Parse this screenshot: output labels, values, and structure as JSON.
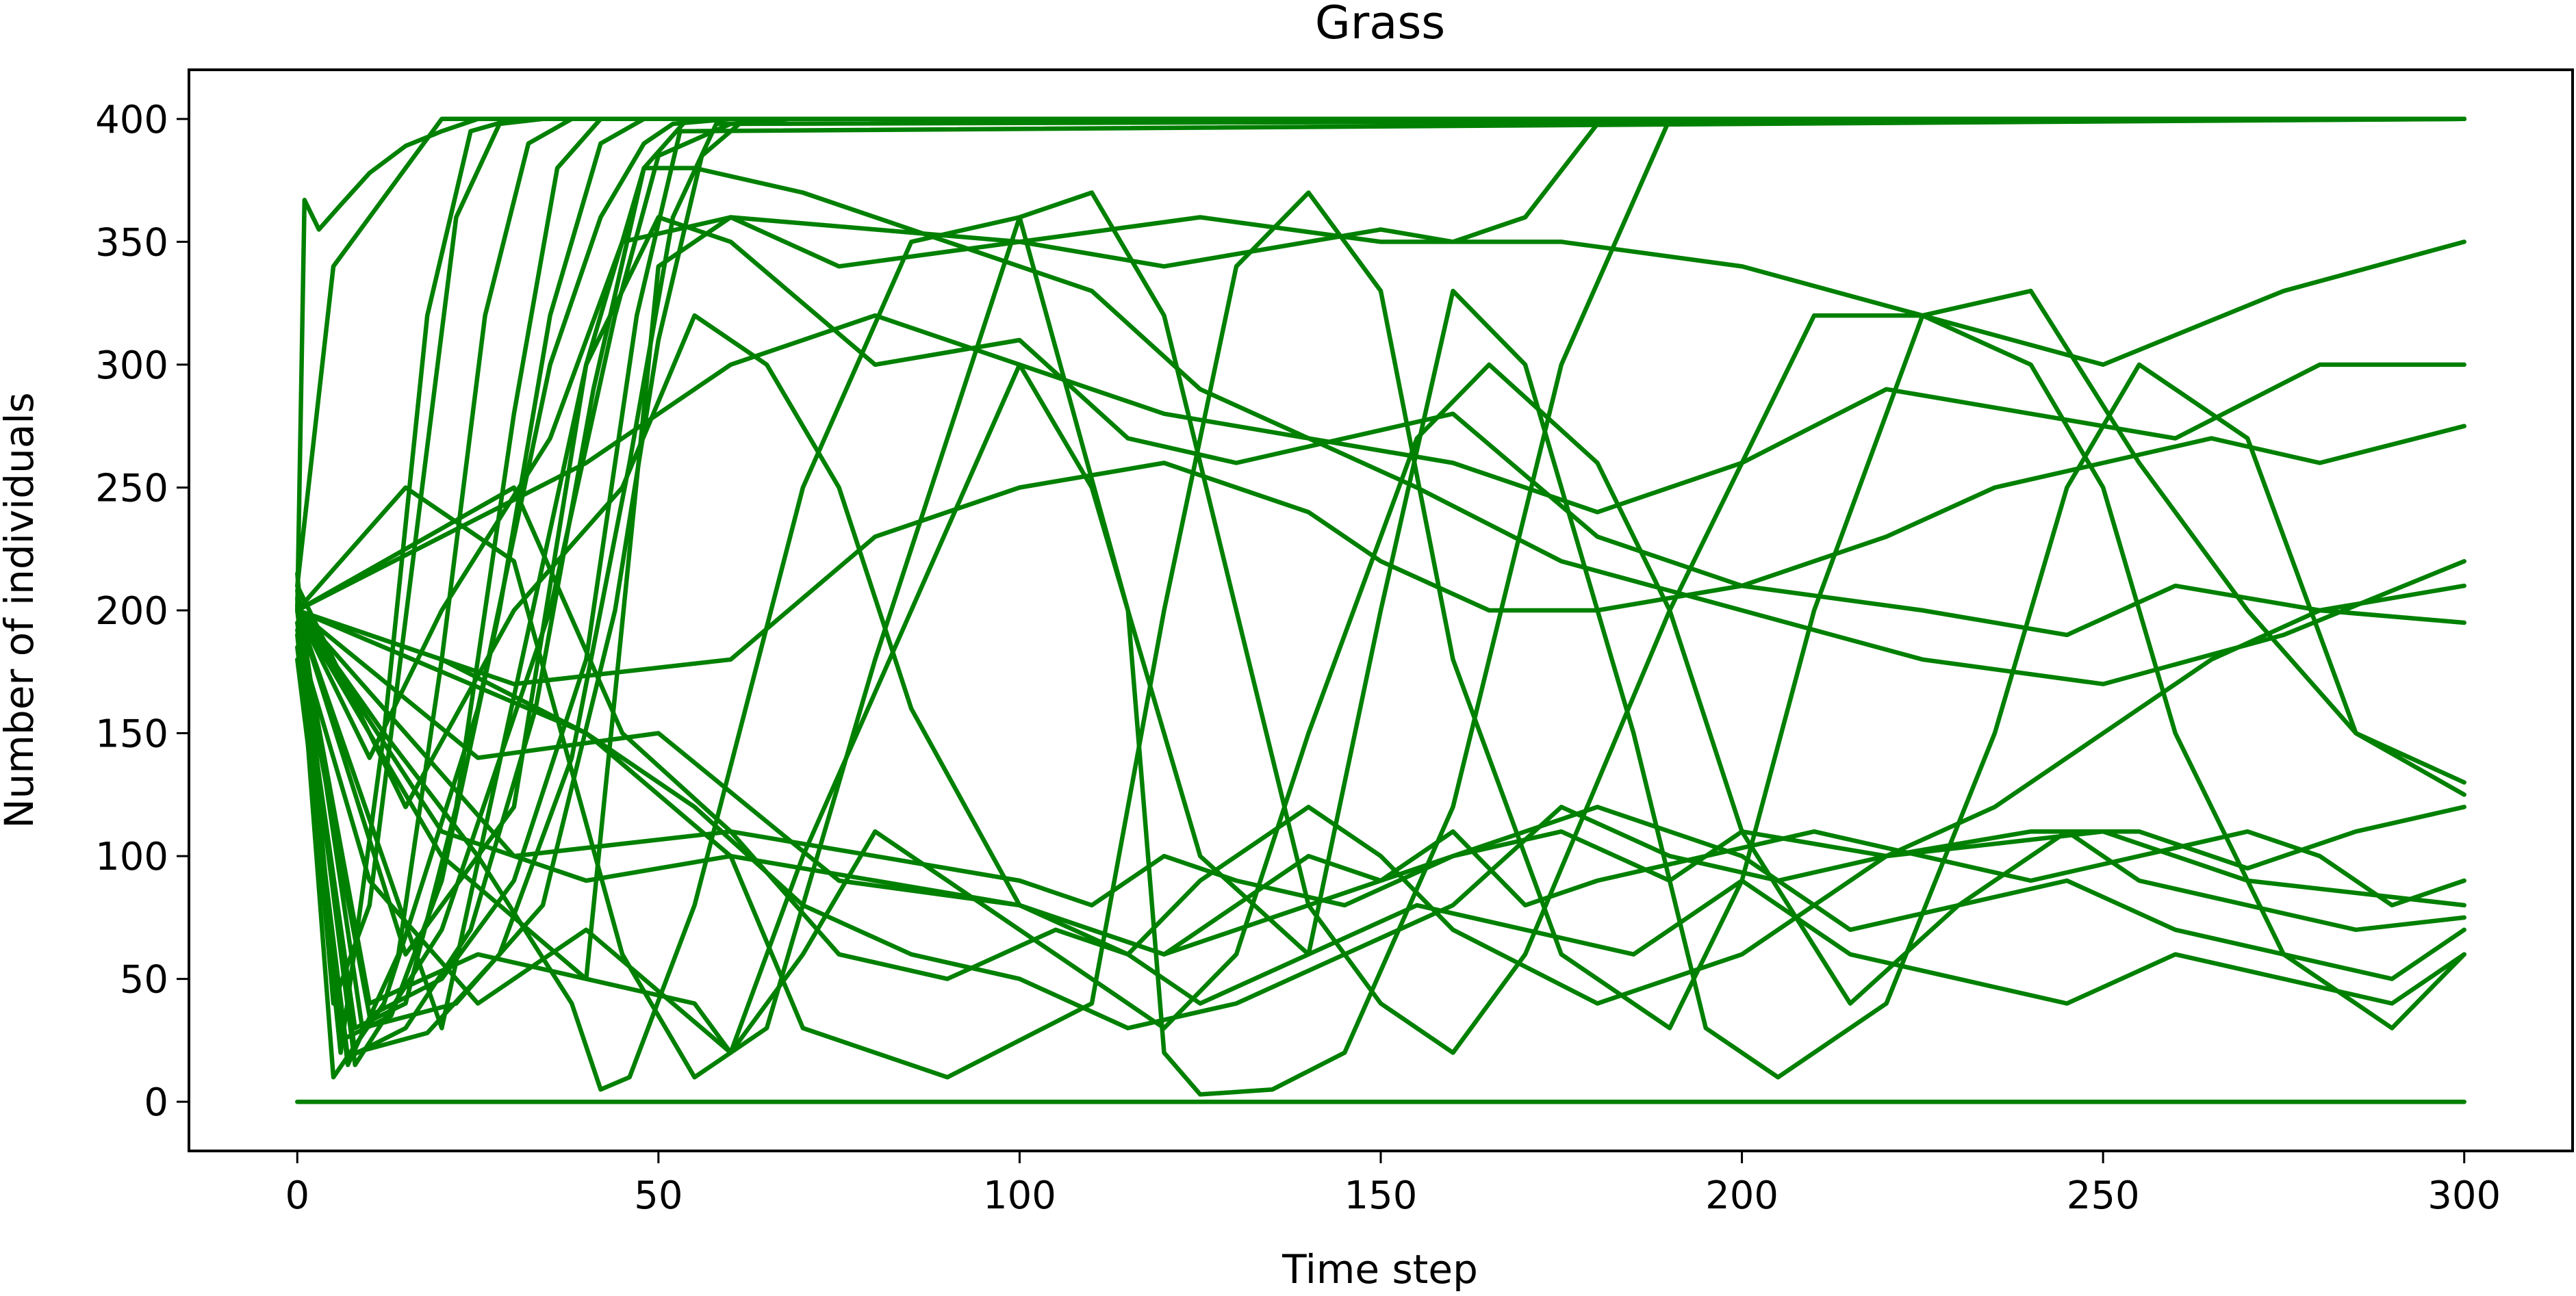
{
  "chart_data": {
    "type": "line",
    "title": "Grass",
    "xlabel": "Time step",
    "ylabel": "Number of individuals",
    "xlim": [
      -15,
      315
    ],
    "ylim": [
      -20,
      420
    ],
    "xticks": [
      0,
      50,
      100,
      150,
      200,
      250,
      300
    ],
    "yticks": [
      0,
      50,
      100,
      150,
      200,
      250,
      300,
      350,
      400
    ],
    "grid": false,
    "legend": "none",
    "line_color": "#008000",
    "series": [
      {
        "x": [
          0,
          300
        ],
        "y": [
          0,
          0
        ]
      },
      {
        "x": [
          0,
          1,
          3,
          6,
          10,
          15,
          20,
          25,
          300
        ],
        "y": [
          200,
          367,
          355,
          365,
          378,
          389,
          395,
          400,
          400
        ]
      },
      {
        "x": [
          0,
          5,
          10,
          15,
          20,
          300
        ],
        "y": [
          210,
          340,
          360,
          380,
          400,
          400
        ]
      },
      {
        "x": [
          0,
          6,
          12,
          18,
          24,
          30,
          300
        ],
        "y": [
          190,
          20,
          150,
          320,
          395,
          400,
          400
        ]
      },
      {
        "x": [
          0,
          5,
          10,
          16,
          22,
          28,
          34,
          300
        ],
        "y": [
          205,
          40,
          80,
          220,
          360,
          398,
          400,
          400
        ]
      },
      {
        "x": [
          0,
          7,
          14,
          20,
          26,
          32,
          38,
          300
        ],
        "y": [
          180,
          15,
          60,
          180,
          320,
          390,
          400,
          400
        ]
      },
      {
        "x": [
          0,
          8,
          15,
          22,
          30,
          36,
          42,
          300
        ],
        "y": [
          195,
          30,
          40,
          120,
          280,
          380,
          400,
          400
        ]
      },
      {
        "x": [
          0,
          6,
          13,
          20,
          28,
          35,
          42,
          48,
          300
        ],
        "y": [
          215,
          25,
          35,
          90,
          200,
          320,
          390,
          400,
          400
        ]
      },
      {
        "x": [
          0,
          7,
          15,
          24,
          33,
          41,
          48,
          54,
          300
        ],
        "y": [
          185,
          18,
          30,
          70,
          160,
          290,
          380,
          400,
          400
        ]
      },
      {
        "x": [
          0,
          8,
          18,
          28,
          38,
          46,
          52,
          58,
          300
        ],
        "y": [
          200,
          20,
          28,
          60,
          140,
          260,
          360,
          398,
          400
        ]
      },
      {
        "x": [
          0,
          10,
          20,
          30,
          40,
          47,
          53,
          300
        ],
        "y": [
          192,
          35,
          50,
          90,
          180,
          320,
          395,
          400
        ]
      },
      {
        "x": [
          0,
          9,
          22,
          34,
          44,
          50,
          56,
          62,
          300
        ],
        "y": [
          208,
          30,
          40,
          80,
          200,
          310,
          385,
          400,
          400
        ]
      },
      {
        "x": [
          0,
          8,
          20,
          35,
          44,
          50,
          60,
          68,
          300
        ],
        "y": [
          200,
          15,
          70,
          200,
          320,
          385,
          398,
          400,
          400
        ]
      },
      {
        "x": [
          0,
          5,
          12,
          25,
          35,
          42,
          48,
          52,
          60,
          300
        ],
        "y": [
          202,
          10,
          40,
          160,
          300,
          360,
          390,
          398,
          400,
          400
        ]
      },
      {
        "x": [
          0,
          10,
          25,
          40,
          50,
          60,
          80,
          100,
          120,
          150,
          160,
          170,
          180,
          300
        ],
        "y": [
          200,
          40,
          60,
          50,
          340,
          360,
          355,
          350,
          340,
          355,
          350,
          360,
          398,
          400
        ]
      },
      {
        "x": [
          0,
          10,
          20,
          35,
          45,
          60,
          75,
          100,
          125,
          150,
          175,
          200,
          225,
          250,
          275,
          300
        ],
        "y": [
          200,
          140,
          200,
          270,
          350,
          360,
          340,
          350,
          360,
          350,
          350,
          340,
          320,
          300,
          330,
          350
        ]
      },
      {
        "x": [
          0,
          15,
          30,
          40,
          48,
          55,
          70,
          90,
          110,
          125,
          140,
          155,
          175,
          200,
          225,
          250,
          275,
          300
        ],
        "y": [
          200,
          60,
          120,
          300,
          380,
          380,
          370,
          350,
          330,
          290,
          270,
          250,
          220,
          200,
          180,
          170,
          190,
          220
        ]
      },
      {
        "x": [
          0,
          20,
          40,
          50,
          60,
          80,
          100,
          115,
          130,
          145,
          160,
          180,
          200,
          225,
          245,
          260,
          280,
          300
        ],
        "y": [
          200,
          30,
          300,
          360,
          350,
          300,
          310,
          270,
          260,
          270,
          280,
          230,
          210,
          200,
          190,
          210,
          200,
          195
        ]
      },
      {
        "x": [
          0,
          15,
          30,
          45,
          55,
          65,
          75,
          85,
          100,
          115,
          125,
          140,
          150,
          160,
          180,
          200,
          220,
          250,
          270,
          300
        ],
        "y": [
          210,
          120,
          200,
          250,
          320,
          300,
          250,
          160,
          80,
          60,
          90,
          120,
          100,
          70,
          40,
          60,
          100,
          110,
          90,
          80
        ]
      },
      {
        "x": [
          0,
          10,
          25,
          40,
          60,
          70,
          80,
          95,
          110,
          120,
          130,
          140,
          155,
          165,
          180,
          190,
          200,
          215,
          230,
          245,
          255,
          270,
          285,
          300
        ],
        "y": [
          190,
          90,
          40,
          70,
          20,
          60,
          110,
          80,
          50,
          30,
          60,
          150,
          270,
          300,
          260,
          200,
          110,
          40,
          80,
          110,
          90,
          80,
          70,
          75
        ]
      },
      {
        "x": [
          0,
          15,
          30,
          45,
          55,
          65,
          80,
          100,
          110,
          120,
          130,
          140,
          150,
          160,
          170,
          190,
          210,
          225,
          240,
          250,
          260,
          275,
          290,
          300
        ],
        "y": [
          200,
          250,
          220,
          60,
          10,
          30,
          180,
          360,
          370,
          320,
          200,
          80,
          40,
          20,
          60,
          200,
          320,
          320,
          300,
          250,
          150,
          60,
          30,
          60
        ]
      },
      {
        "x": [
          0,
          12,
          25,
          38,
          42,
          46,
          55,
          70,
          85,
          100,
          115,
          120,
          125,
          135,
          145,
          160,
          175,
          190,
          200,
          215,
          230,
          245,
          260,
          275,
          290,
          300
        ],
        "y": [
          200,
          150,
          100,
          40,
          5,
          10,
          80,
          250,
          350,
          360,
          200,
          20,
          3,
          5,
          20,
          120,
          300,
          400,
          400,
          400,
          400,
          400,
          400,
          400,
          400,
          400
        ]
      },
      {
        "x": [
          0,
          20,
          40,
          55,
          60,
          70,
          85,
          100,
          110,
          125,
          140,
          150,
          160,
          170,
          185,
          195,
          205,
          220,
          235,
          245,
          255,
          270,
          285,
          300
        ],
        "y": [
          200,
          100,
          50,
          40,
          20,
          100,
          200,
          300,
          250,
          100,
          60,
          200,
          330,
          300,
          150,
          30,
          10,
          40,
          150,
          250,
          300,
          270,
          150,
          125
        ]
      },
      {
        "x": [
          0,
          20,
          40,
          60,
          70,
          90,
          110,
          120,
          130,
          140,
          150,
          160,
          175,
          190,
          200,
          210,
          225,
          240,
          255,
          270,
          285,
          300
        ],
        "y": [
          200,
          180,
          150,
          100,
          30,
          10,
          40,
          200,
          340,
          370,
          330,
          180,
          60,
          30,
          90,
          200,
          320,
          330,
          260,
          200,
          150,
          130
        ]
      },
      {
        "x": [
          0,
          20,
          40,
          60,
          80,
          100,
          120,
          130,
          140,
          150,
          160,
          170,
          180,
          195,
          210,
          225,
          240,
          255,
          270,
          280,
          290,
          300
        ],
        "y": [
          200,
          110,
          90,
          100,
          90,
          80,
          60,
          80,
          100,
          90,
          110,
          80,
          90,
          100,
          110,
          100,
          90,
          100,
          110,
          100,
          80,
          90
        ]
      },
      {
        "x": [
          0,
          30,
          60,
          80,
          100,
          110,
          120,
          130,
          145,
          160,
          175,
          190,
          200,
          220,
          240,
          255,
          270,
          285,
          300
        ],
        "y": [
          200,
          100,
          110,
          100,
          90,
          80,
          100,
          90,
          80,
          100,
          110,
          90,
          110,
          100,
          110,
          110,
          95,
          110,
          120
        ]
      },
      {
        "x": [
          0,
          25,
          50,
          75,
          100,
          120,
          140,
          160,
          180,
          200,
          215,
          230,
          245,
          260,
          275,
          290,
          300
        ],
        "y": [
          200,
          140,
          150,
          90,
          80,
          60,
          80,
          100,
          120,
          100,
          70,
          80,
          90,
          70,
          60,
          50,
          70
        ]
      },
      {
        "x": [
          0,
          30,
          45,
          60,
          75,
          90,
          105,
          115,
          125,
          140,
          155,
          170,
          185,
          200,
          215,
          230,
          245,
          260,
          275,
          290,
          300
        ],
        "y": [
          200,
          250,
          150,
          110,
          60,
          50,
          70,
          60,
          40,
          60,
          80,
          70,
          60,
          90,
          60,
          50,
          40,
          60,
          50,
          40,
          60
        ]
      },
      {
        "x": [
          0,
          40,
          55,
          70,
          85,
          100,
          115,
          130,
          145,
          160,
          175,
          190,
          205,
          220,
          235,
          250,
          265,
          280,
          300
        ],
        "y": [
          200,
          150,
          120,
          80,
          60,
          50,
          30,
          40,
          60,
          80,
          120,
          100,
          90,
          100,
          120,
          150,
          180,
          200,
          210
        ]
      },
      {
        "x": [
          0,
          30,
          60,
          80,
          100,
          120,
          130,
          140,
          150,
          165,
          180,
          200,
          220,
          235,
          250,
          265,
          280,
          300
        ],
        "y": [
          200,
          170,
          180,
          230,
          250,
          260,
          250,
          240,
          220,
          200,
          200,
          210,
          230,
          250,
          260,
          270,
          260,
          275
        ]
      },
      {
        "x": [
          0,
          20,
          40,
          60,
          80,
          100,
          120,
          140,
          160,
          180,
          200,
          220,
          240,
          260,
          280,
          300
        ],
        "y": [
          200,
          230,
          260,
          300,
          320,
          300,
          280,
          270,
          260,
          240,
          260,
          290,
          280,
          270,
          300,
          300
        ]
      }
    ]
  }
}
